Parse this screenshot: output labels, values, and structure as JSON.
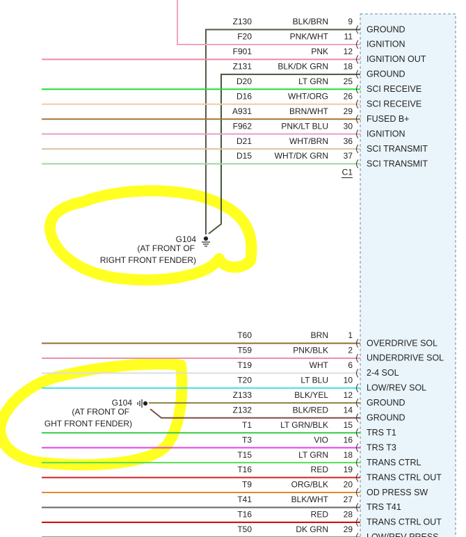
{
  "sections": [
    {
      "connector": "C1",
      "rows": [
        {
          "circuit": "Z130",
          "color": "BLK/BRN",
          "pin": "9",
          "function": "GROUND",
          "wire": "#55574a"
        },
        {
          "circuit": "F20",
          "color": "PNK/WHT",
          "pin": "11",
          "function": "IGNITION",
          "wire": "#f2a4bf"
        },
        {
          "circuit": "F901",
          "color": "PNK",
          "pin": "12",
          "function": "IGNITION OUT",
          "wire": "#e98aa9"
        },
        {
          "circuit": "Z131",
          "color": "BLK/DK GRN",
          "pin": "18",
          "function": "GROUND",
          "wire": "#46573c"
        },
        {
          "circuit": "D20",
          "color": "LT GRN",
          "pin": "25",
          "function": "SCI RECEIVE",
          "wire": "#22dd33"
        },
        {
          "circuit": "D16",
          "color": "WHT/ORG",
          "pin": "26",
          "function": "SCI RECEIVE",
          "wire": "#f2c9a2"
        },
        {
          "circuit": "A931",
          "color": "BRN/WHT",
          "pin": "29",
          "function": "FUSED B+",
          "wire": "#a6742f"
        },
        {
          "circuit": "F962",
          "color": "PNK/LT BLU",
          "pin": "30",
          "function": "IGNITION",
          "wire": "#e3a0c9"
        },
        {
          "circuit": "D21",
          "color": "WHT/BRN",
          "pin": "36",
          "function": "SCI TRANSMIT",
          "wire": "#d9c2a3"
        },
        {
          "circuit": "D15",
          "color": "WHT/DK GRN",
          "pin": "37",
          "function": "SCI TRANSMIT",
          "wire": "#9fd69f"
        }
      ]
    },
    {
      "rows": [
        {
          "circuit": "T60",
          "color": "BRN",
          "pin": "1",
          "function": "OVERDRIVE SOL",
          "wire": "#8c6d2c"
        },
        {
          "circuit": "T59",
          "color": "PNK/BLK",
          "pin": "2",
          "function": "UNDERDRIVE SOL",
          "wire": "#e890b0"
        },
        {
          "circuit": "T19",
          "color": "WHT",
          "pin": "6",
          "function": "2-4 SOL",
          "wire": "#dddddd"
        },
        {
          "circuit": "T20",
          "color": "LT BLU",
          "pin": "10",
          "function": "LOW/REV SOL",
          "wire": "#3fe3e3"
        },
        {
          "circuit": "Z133",
          "color": "BLK/YEL",
          "pin": "12",
          "function": "GROUND",
          "wire": "#8a7d3a"
        },
        {
          "circuit": "Z132",
          "color": "BLK/RED",
          "pin": "14",
          "function": "GROUND",
          "wire": "#7a4c4c"
        },
        {
          "circuit": "T1",
          "color": "LT GRN/BLK",
          "pin": "15",
          "function": "TRS T1",
          "wire": "#33cc44"
        },
        {
          "circuit": "T3",
          "color": "VIO",
          "pin": "16",
          "function": "TRS T3",
          "wire": "#e040e0"
        },
        {
          "circuit": "T15",
          "color": "LT GRN",
          "pin": "18",
          "function": "TRANS CTRL",
          "wire": "#55dd55"
        },
        {
          "circuit": "T16",
          "color": "RED",
          "pin": "19",
          "function": "TRANS CTRL OUT",
          "wire": "#cc2222"
        },
        {
          "circuit": "T9",
          "color": "ORG/BLK",
          "pin": "20",
          "function": "OD PRESS SW",
          "wire": "#e08a2a"
        },
        {
          "circuit": "T41",
          "color": "BLK/WHT",
          "pin": "27",
          "function": "TRS T41",
          "wire": "#666666"
        },
        {
          "circuit": "T16",
          "color": "RED",
          "pin": "28",
          "function": "TRANS CTRL OUT",
          "wire": "#cc0000"
        },
        {
          "circuit": "T50",
          "color": "DK GRN",
          "pin": "29",
          "function": "LOW/REV PRESS",
          "wire": "#3a6a3a"
        }
      ]
    }
  ],
  "grounds": [
    {
      "id": "G104",
      "location": [
        "(AT FRONT OF",
        "RIGHT FRONT FENDER)"
      ]
    },
    {
      "id": "G104",
      "location": [
        "(AT FRONT OF",
        "GHT FRONT FENDER)"
      ]
    }
  ]
}
